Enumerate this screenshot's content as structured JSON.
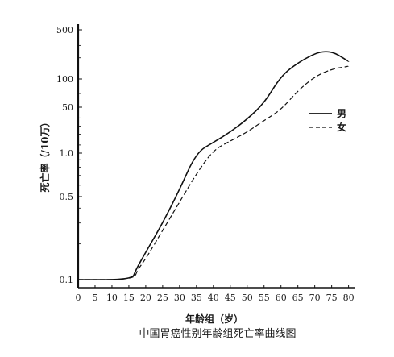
{
  "chart_data": {
    "type": "line",
    "title": "中国胃癌性别年龄组死亡率曲线图",
    "xlabel": "年龄组（岁）",
    "ylabel": "死亡率（/10万）",
    "xlim": [
      0,
      82
    ],
    "x_ticks": [
      0,
      5,
      10,
      15,
      20,
      25,
      30,
      35,
      40,
      45,
      50,
      55,
      60,
      65,
      70,
      75,
      80
    ],
    "y_scale": "log",
    "y_tick_labels": [
      "0.1",
      "0.5",
      "1.0",
      "50",
      "100",
      "500"
    ],
    "grid": false,
    "legend_position": "right",
    "series": [
      {
        "name": "男",
        "style": "solid",
        "color": "#111111",
        "points": [
          [
            0,
            0.1
          ],
          [
            16,
            0.1
          ],
          [
            17,
            0.12
          ],
          [
            20,
            0.17
          ],
          [
            25,
            0.3
          ],
          [
            30,
            0.56
          ],
          [
            35,
            1.05
          ],
          [
            40,
            2.5
          ],
          [
            45,
            6
          ],
          [
            50,
            18
          ],
          [
            55,
            55
          ],
          [
            60,
            110
          ],
          [
            65,
            170
          ],
          [
            70,
            230
          ],
          [
            73,
            248
          ],
          [
            76,
            235
          ],
          [
            80,
            178
          ]
        ]
      },
      {
        "name": "女",
        "style": "dashed",
        "color": "#111111",
        "points": [
          [
            0,
            0.1
          ],
          [
            16.5,
            0.1
          ],
          [
            17.5,
            0.12
          ],
          [
            20,
            0.15
          ],
          [
            25,
            0.26
          ],
          [
            30,
            0.45
          ],
          [
            35,
            0.72
          ],
          [
            40,
            1.3
          ],
          [
            45,
            2.8
          ],
          [
            50,
            6
          ],
          [
            55,
            16
          ],
          [
            60,
            40
          ],
          [
            65,
            75
          ],
          [
            70,
            108
          ],
          [
            75,
            138
          ],
          [
            80,
            152
          ]
        ]
      }
    ]
  }
}
